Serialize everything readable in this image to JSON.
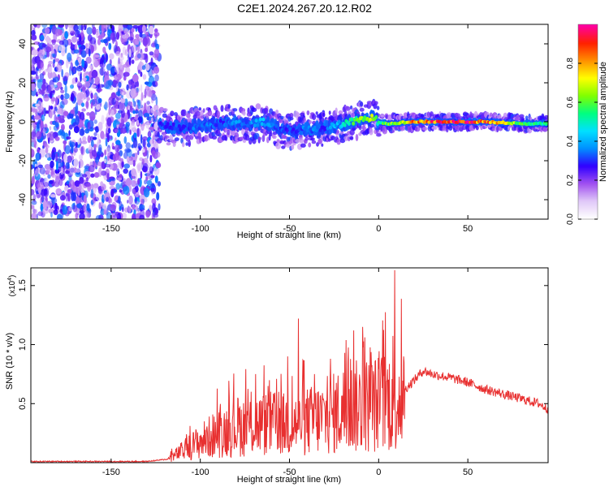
{
  "title": "C2E1.2024.267.20.12.R02",
  "colors": {
    "spectrogram_noise": "#7a2be0",
    "snr_line": "#e83030",
    "axis": "#000000"
  },
  "chart_data": [
    {
      "type": "heatmap",
      "xlabel": "Height of straight line (km)",
      "ylabel": "Frequency (Hz)",
      "xlim": [
        -195,
        95
      ],
      "ylim": [
        -50,
        50
      ],
      "xticks": [
        -150,
        -100,
        -50,
        0,
        50
      ],
      "yticks": [
        -40,
        -20,
        0,
        20,
        40
      ],
      "colorbar": {
        "label": "Normalized spectral amplitude",
        "range": [
          0,
          1
        ],
        "ticks": [
          "0.0",
          "0.2",
          "0.4",
          "0.6",
          "0.8"
        ],
        "colormap": [
          "#ffffff",
          "#e0c8f8",
          "#a050f0",
          "#3000ff",
          "#0090ff",
          "#00e0ff",
          "#00ff80",
          "#80ff00",
          "#ffff00",
          "#ff9000",
          "#ff2000",
          "#ff00a0"
        ]
      },
      "noise_region_x": [
        -195,
        -123
      ],
      "ridge": {
        "x": [
          -123,
          -110,
          -100,
          -90,
          -80,
          -70,
          -65,
          -55,
          -50,
          -40,
          -30,
          -20,
          -10,
          -3,
          0,
          5,
          20,
          40,
          60,
          80,
          95
        ],
        "y": [
          -2,
          -3,
          -2,
          -1,
          -1,
          -1,
          0,
          -4,
          -5,
          -4,
          -3,
          -1,
          1,
          2,
          0,
          -1,
          0,
          0,
          0,
          -1,
          -1
        ],
        "amplitude": [
          0.3,
          0.3,
          0.35,
          0.3,
          0.35,
          0.35,
          0.4,
          0.3,
          0.3,
          0.35,
          0.3,
          0.45,
          0.6,
          0.7,
          0.5,
          0.6,
          0.8,
          0.9,
          0.85,
          0.6,
          0.5
        ]
      }
    },
    {
      "type": "line",
      "xlabel": "Height of straight line (km)",
      "ylabel": "SNR (10 * v/v)",
      "y_scale_label": "(x10",
      "y_scale_exp": "4",
      "y_scale_close": ")",
      "xlim": [
        -195,
        95
      ],
      "ylim": [
        0,
        1.65
      ],
      "xticks": [
        -150,
        -100,
        -50,
        0,
        50
      ],
      "yticks": [
        0.5,
        1.0,
        1.5
      ],
      "ytick_labels": [
        "0.5",
        "1.0",
        "1.5"
      ],
      "series": [
        {
          "x": [
            -195,
            -170,
            -150,
            -130,
            -118,
            -110,
            -100,
            -90,
            -80,
            -70,
            -60,
            -50,
            -40,
            -30,
            -20,
            -10,
            0,
            10,
            20,
            25,
            30,
            40,
            50,
            60,
            70,
            80,
            90,
            95
          ],
          "y": [
            0.01,
            0.01,
            0.01,
            0.01,
            0.03,
            0.1,
            0.18,
            0.25,
            0.3,
            0.32,
            0.33,
            0.32,
            0.35,
            0.38,
            0.45,
            0.48,
            0.5,
            0.55,
            0.7,
            0.78,
            0.75,
            0.72,
            0.68,
            0.62,
            0.58,
            0.54,
            0.5,
            0.45
          ],
          "spikes": [
            {
              "x": -79,
              "y": 0.55
            },
            {
              "x": -69,
              "y": 0.75
            },
            {
              "x": -62,
              "y": 0.65
            },
            {
              "x": -56,
              "y": 0.6
            },
            {
              "x": -51,
              "y": 0.9
            },
            {
              "x": -45,
              "y": 1.22
            },
            {
              "x": -36,
              "y": 0.75
            },
            {
              "x": -27,
              "y": 0.88
            },
            {
              "x": -14,
              "y": 1.12
            },
            {
              "x": -9,
              "y": 1.15
            },
            {
              "x": 9,
              "y": 1.63
            },
            {
              "x": 14,
              "y": 0.9
            }
          ]
        }
      ]
    }
  ]
}
